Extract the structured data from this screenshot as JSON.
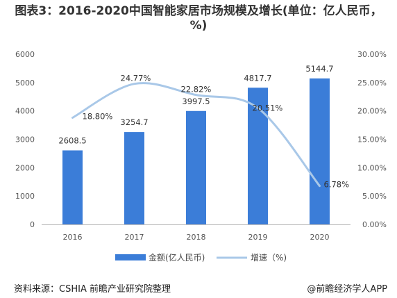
{
  "title": "图表3：2016-2020中国智能家居市场规模及增长(单位：亿人民币，%)",
  "source": "资料来源：CSHIA 前瞻产业研究院整理",
  "credit": "@前瞻经济学人APP",
  "colors": {
    "bar": "#3b7dd8",
    "line": "#a9c8e8"
  },
  "chart_data": {
    "type": "bar",
    "categories": [
      "2016",
      "2017",
      "2018",
      "2019",
      "2020"
    ],
    "series": [
      {
        "name": "金额(亿人民币)",
        "type": "bar",
        "axis": "left",
        "values": [
          2608.5,
          3254.7,
          3997.5,
          4817.7,
          5144.7
        ],
        "labels": [
          "2608.5",
          "3254.7",
          "3997.5",
          "4817.7",
          "5144.7"
        ]
      },
      {
        "name": "增速（%)",
        "type": "line",
        "axis": "right",
        "values": [
          18.8,
          24.77,
          22.82,
          20.51,
          6.78
        ],
        "labels": [
          "18.80%",
          "24.77%",
          "22.82%",
          "20.51%",
          "6.78%"
        ]
      }
    ],
    "y_left": {
      "ylim": [
        0,
        6000
      ],
      "ticks": [
        "0",
        "1000",
        "2000",
        "3000",
        "4000",
        "5000",
        "6000"
      ]
    },
    "y_right": {
      "ylim": [
        0,
        30
      ],
      "ticks": [
        "0.00%",
        "5.00%",
        "10.00%",
        "15.00%",
        "20.00%",
        "25.00%",
        "30.00%"
      ]
    },
    "grid": false,
    "legend": "bottom"
  }
}
